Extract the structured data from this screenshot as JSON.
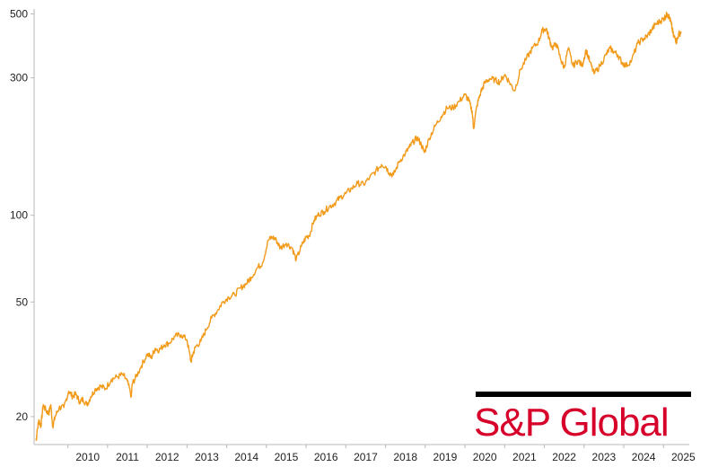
{
  "chart_data": {
    "type": "line",
    "title": "",
    "xlabel": "",
    "ylabel": "",
    "y_scale": "log",
    "ylim": [
      16,
      520
    ],
    "xlim": [
      2009.15,
      2025.65
    ],
    "grid": false,
    "legend": "none",
    "line_color": "#f29a1a",
    "y_ticks": [
      {
        "value": 20,
        "label": "20"
      },
      {
        "value": 50,
        "label": "50"
      },
      {
        "value": 100,
        "label": "100"
      },
      {
        "value": 300,
        "label": "300"
      },
      {
        "value": 500,
        "label": "500"
      }
    ],
    "x_ticks": [
      {
        "value": 2010,
        "label": "2010"
      },
      {
        "value": 2011,
        "label": "2011"
      },
      {
        "value": 2012,
        "label": "2012"
      },
      {
        "value": 2013,
        "label": "2013"
      },
      {
        "value": 2014,
        "label": "2014"
      },
      {
        "value": 2015,
        "label": "2015"
      },
      {
        "value": 2016,
        "label": "2016"
      },
      {
        "value": 2017,
        "label": "2017"
      },
      {
        "value": 2018,
        "label": "2018"
      },
      {
        "value": 2019,
        "label": "2019"
      },
      {
        "value": 2020,
        "label": "2020"
      },
      {
        "value": 2021,
        "label": "2021"
      },
      {
        "value": 2022,
        "label": "2022"
      },
      {
        "value": 2023,
        "label": "2023"
      },
      {
        "value": 2024,
        "label": "2024"
      },
      {
        "value": 2025,
        "label": "2025"
      }
    ],
    "series": [
      {
        "name": "",
        "x": [
          2009.2,
          2009.22,
          2009.27,
          2009.32,
          2009.38,
          2009.45,
          2009.52,
          2009.57,
          2009.62,
          2009.68,
          2009.78,
          2009.9,
          2010.02,
          2010.12,
          2010.2,
          2010.3,
          2010.38,
          2010.48,
          2010.58,
          2010.7,
          2010.82,
          2010.95,
          2011.1,
          2011.25,
          2011.38,
          2011.5,
          2011.6,
          2011.62,
          2011.72,
          2011.85,
          2012.0,
          2012.1,
          2012.2,
          2012.3,
          2012.42,
          2012.55,
          2012.7,
          2012.85,
          2013.0,
          2013.1,
          2013.15,
          2013.22,
          2013.35,
          2013.48,
          2013.62,
          2013.78,
          2013.9,
          2014.05,
          2014.2,
          2014.35,
          2014.5,
          2014.62,
          2014.78,
          2014.9,
          2015.05,
          2015.15,
          2015.25,
          2015.35,
          2015.5,
          2015.65,
          2015.75,
          2015.88,
          2016.0,
          2016.08,
          2016.2,
          2016.32,
          2016.45,
          2016.58,
          2016.72,
          2016.85,
          2017.0,
          2017.15,
          2017.3,
          2017.45,
          2017.6,
          2017.75,
          2017.9,
          2018.0,
          2018.1,
          2018.2,
          2018.35,
          2018.5,
          2018.6,
          2018.7,
          2018.8,
          2018.9,
          2018.98,
          2019.1,
          2019.25,
          2019.4,
          2019.55,
          2019.7,
          2019.85,
          2020.0,
          2020.1,
          2020.18,
          2020.22,
          2020.3,
          2020.4,
          2020.5,
          2020.62,
          2020.75,
          2020.88,
          2021.0,
          2021.12,
          2021.25,
          2021.4,
          2021.55,
          2021.7,
          2021.85,
          2021.95,
          2022.05,
          2022.12,
          2022.2,
          2022.3,
          2022.42,
          2022.5,
          2022.6,
          2022.72,
          2022.85,
          2022.95,
          2023.05,
          2023.15,
          2023.25,
          2023.4,
          2023.55,
          2023.65,
          2023.75,
          2023.85,
          2023.95,
          2024.05,
          2024.2,
          2024.35,
          2024.5,
          2024.6,
          2024.7,
          2024.8,
          2024.9,
          2025.0,
          2025.05,
          2025.1,
          2025.15,
          2025.2,
          2025.25,
          2025.3,
          2025.33,
          2025.38,
          2025.45
        ],
        "values": [
          16.5,
          17.5,
          19.5,
          18.5,
          22,
          21,
          20.5,
          22,
          18.5,
          20,
          21.5,
          21.5,
          24.5,
          23.5,
          24,
          22.5,
          23,
          22,
          23.5,
          25,
          25.5,
          25,
          27,
          27.5,
          28,
          26.5,
          23.5,
          26,
          27.5,
          30,
          33,
          32,
          34.5,
          34,
          35.5,
          36,
          38,
          38.5,
          37,
          31,
          33,
          35,
          36.5,
          40,
          44,
          47,
          50,
          52,
          53,
          56,
          58,
          61,
          66,
          68,
          82,
          84,
          82,
          77,
          80,
          77,
          70,
          78,
          84,
          85,
          96,
          101,
          103,
          107,
          110,
          115,
          119,
          124,
          129,
          128,
          135,
          142,
          150,
          148,
          140,
          138,
          154,
          164,
          172,
          180,
          186,
          176,
          165,
          185,
          204,
          220,
          236,
          236,
          248,
          262,
          250,
          230,
          200,
          240,
          268,
          288,
          298,
          295,
          290,
          308,
          290,
          270,
          320,
          350,
          380,
          400,
          438,
          445,
          410,
          380,
          395,
          345,
          325,
          380,
          330,
          345,
          330,
          375,
          340,
          310,
          330,
          360,
          380,
          370,
          360,
          340,
          330,
          345,
          395,
          410,
          420,
          440,
          460,
          470,
          480,
          490,
          500,
          485,
          460,
          420,
          410,
          400,
          425,
          432
        ]
      }
    ]
  },
  "logo": {
    "text": "S&P Global"
  }
}
